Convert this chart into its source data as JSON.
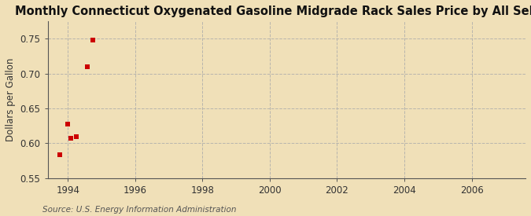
{
  "title": "Monthly Connecticut Oxygenated Gasoline Midgrade Rack Sales Price by All Sellers",
  "ylabel": "Dollars per Gallon",
  "source": "Source: U.S. Energy Information Administration",
  "background_color": "#f0e0b8",
  "plot_bg_color": "#f0e0b8",
  "data_x": [
    1993.75,
    1994.0,
    1994.08,
    1994.25,
    1994.58,
    1994.75
  ],
  "data_y": [
    0.584,
    0.628,
    0.607,
    0.61,
    0.71,
    0.748
  ],
  "marker_color": "#cc0000",
  "marker_size": 18,
  "xlim": [
    1993.4,
    2007.6
  ],
  "ylim": [
    0.55,
    0.775
  ],
  "xticks": [
    1994,
    1996,
    1998,
    2000,
    2002,
    2004,
    2006
  ],
  "yticks": [
    0.55,
    0.6,
    0.65,
    0.7,
    0.75
  ],
  "grid_color": "#aaaaaa",
  "title_fontsize": 10.5,
  "label_fontsize": 8.5,
  "tick_fontsize": 8.5,
  "source_fontsize": 7.5
}
